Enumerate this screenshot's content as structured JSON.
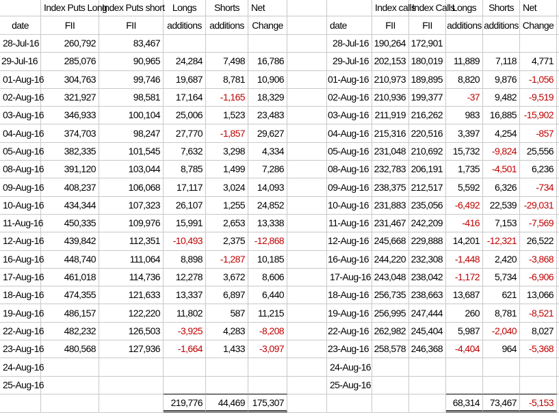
{
  "left_table": {
    "header1": [
      "",
      "Index Puts Long",
      "Index Puts short",
      "Longs",
      "Shorts",
      "Net"
    ],
    "header2": [
      "date",
      "FII",
      "FII",
      "additions",
      "additions",
      "Change"
    ],
    "rows": [
      [
        "28-Jul-16",
        "260,792",
        "83,467",
        "",
        "",
        ""
      ],
      [
        "29-Jul-16",
        "285,076",
        "90,965",
        "24,284",
        "7,498",
        "16,786"
      ],
      [
        "01-Aug-16",
        "304,763",
        "99,746",
        "19,687",
        "8,781",
        "10,906"
      ],
      [
        "02-Aug-16",
        "321,927",
        "98,581",
        "17,164",
        "-1,165",
        "18,329"
      ],
      [
        "03-Aug-16",
        "346,933",
        "100,104",
        "25,006",
        "1,523",
        "23,483"
      ],
      [
        "04-Aug-16",
        "374,703",
        "98,247",
        "27,770",
        "-1,857",
        "29,627"
      ],
      [
        "05-Aug-16",
        "382,335",
        "101,545",
        "7,632",
        "3,298",
        "4,334"
      ],
      [
        "08-Aug-16",
        "391,120",
        "103,044",
        "8,785",
        "1,499",
        "7,286"
      ],
      [
        "09-Aug-16",
        "408,237",
        "106,068",
        "17,117",
        "3,024",
        "14,093"
      ],
      [
        "10-Aug-16",
        "434,344",
        "107,323",
        "26,107",
        "1,255",
        "24,852"
      ],
      [
        "11-Aug-16",
        "450,335",
        "109,976",
        "15,991",
        "2,653",
        "13,338"
      ],
      [
        "12-Aug-16",
        "439,842",
        "112,351",
        "-10,493",
        "2,375",
        "-12,868"
      ],
      [
        "16-Aug-16",
        "448,740",
        "111,064",
        "8,898",
        "-1,287",
        "10,185"
      ],
      [
        "17-Aug-16",
        "461,018",
        "114,736",
        "12,278",
        "3,672",
        "8,606"
      ],
      [
        "18-Aug-16",
        "474,355",
        "121,633",
        "13,337",
        "6,897",
        "6,440"
      ],
      [
        "19-Aug-16",
        "486,157",
        "122,220",
        "11,802",
        "587",
        "11,215"
      ],
      [
        "22-Aug-16",
        "482,232",
        "126,503",
        "-3,925",
        "4,283",
        "-8,208"
      ],
      [
        "23-Aug-16",
        "480,568",
        "127,936",
        "-1,664",
        "1,433",
        "-3,097"
      ],
      [
        "24-Aug-16",
        "",
        "",
        "",
        "",
        ""
      ],
      [
        "25-Aug-16",
        "",
        "",
        "",
        "",
        ""
      ]
    ],
    "totals": [
      "",
      "",
      "",
      "219,776",
      "44,469",
      "175,307"
    ]
  },
  "right_table": {
    "header1": [
      "",
      "Index calls",
      "Index Calls",
      "Longs",
      "Shorts",
      "Net"
    ],
    "header2": [
      "date",
      "FII",
      "FII",
      "additions",
      "additions",
      "Change"
    ],
    "rows": [
      [
        "28-Jul-16",
        "190,264",
        "172,901",
        "",
        "",
        ""
      ],
      [
        "29-Jul-16",
        "202,153",
        "180,019",
        "11,889",
        "7,118",
        "4,771"
      ],
      [
        "01-Aug-16",
        "210,973",
        "189,895",
        "8,820",
        "9,876",
        "-1,056"
      ],
      [
        "02-Aug-16",
        "210,936",
        "199,377",
        "-37",
        "9,482",
        "-9,519"
      ],
      [
        "03-Aug-16",
        "211,919",
        "216,262",
        "983",
        "16,885",
        "-15,902"
      ],
      [
        "04-Aug-16",
        "215,316",
        "220,516",
        "3,397",
        "4,254",
        "-857"
      ],
      [
        "05-Aug-16",
        "231,048",
        "210,692",
        "15,732",
        "-9,824",
        "25,556"
      ],
      [
        "08-Aug-16",
        "232,783",
        "206,191",
        "1,735",
        "-4,501",
        "6,236"
      ],
      [
        "09-Aug-16",
        "238,375",
        "212,517",
        "5,592",
        "6,326",
        "-734"
      ],
      [
        "10-Aug-16",
        "231,883",
        "235,056",
        "-6,492",
        "22,539",
        "-29,031"
      ],
      [
        "11-Aug-16",
        "231,467",
        "242,209",
        "-416",
        "7,153",
        "-7,569"
      ],
      [
        "12-Aug-16",
        "245,668",
        "229,888",
        "14,201",
        "-12,321",
        "26,522"
      ],
      [
        "16-Aug-16",
        "244,220",
        "232,308",
        "-1,448",
        "2,420",
        "-3,868"
      ],
      [
        "17-Aug-16",
        "243,048",
        "238,042",
        "-1,172",
        "5,734",
        "-6,906"
      ],
      [
        "18-Aug-16",
        "256,735",
        "238,663",
        "13,687",
        "621",
        "13,066"
      ],
      [
        "19-Aug-16",
        "256,995",
        "247,444",
        "260",
        "8,781",
        "-8,521"
      ],
      [
        "22-Aug-16",
        "262,982",
        "245,404",
        "5,987",
        "-2,040",
        "8,027"
      ],
      [
        "23-Aug-16",
        "258,578",
        "246,368",
        "-4,404",
        "964",
        "-5,368"
      ],
      [
        "24-Aug-16",
        "",
        "",
        "",
        "",
        ""
      ],
      [
        "25-Aug-16",
        "",
        "",
        "",
        "",
        ""
      ]
    ],
    "totals": [
      "",
      "",
      "",
      "68,314",
      "73,467",
      "-5,153"
    ]
  },
  "colors": {
    "negative": "#c00000",
    "gridline": "#c8c8c8"
  }
}
